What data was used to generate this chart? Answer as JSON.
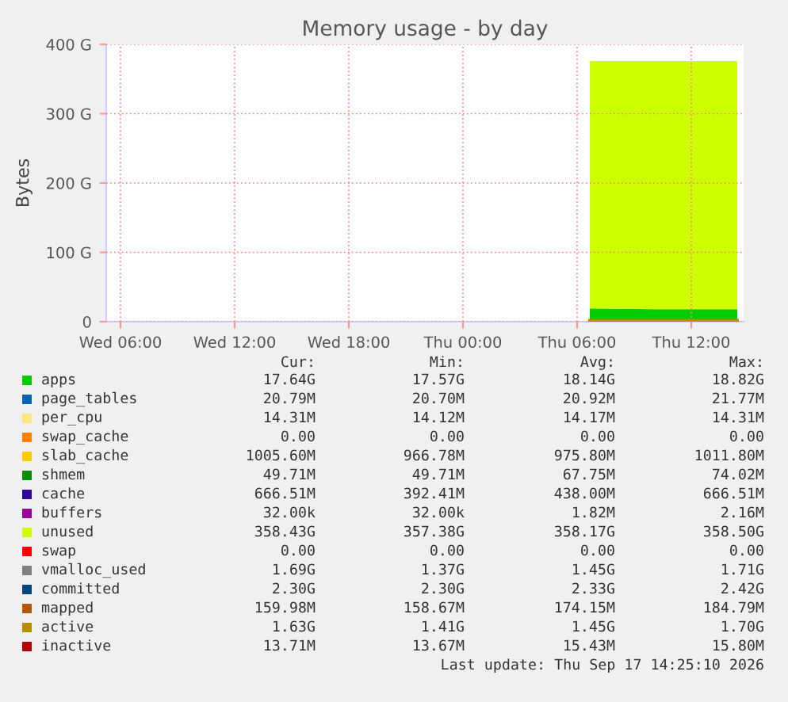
{
  "chart_data": {
    "type": "area",
    "title": "Memory usage - by day",
    "ylabel": "Bytes",
    "stacked": true,
    "grid": true,
    "legend": "bottom",
    "x": [
      "2026-09-17T06:40",
      "2026-09-17T10:00",
      "2026-09-17T14:25"
    ],
    "xlim": [
      "2026-09-16T05:15",
      "2026-09-17T14:45"
    ],
    "xticks": [
      {
        "value": "2026-09-16T06:00",
        "label": "Wed 06:00"
      },
      {
        "value": "2026-09-16T12:00",
        "label": "Wed 12:00"
      },
      {
        "value": "2026-09-16T18:00",
        "label": "Wed 18:00"
      },
      {
        "value": "2026-09-17T00:00",
        "label": "Thu 00:00"
      },
      {
        "value": "2026-09-17T06:00",
        "label": "Thu 06:00"
      },
      {
        "value": "2026-09-17T12:00",
        "label": "Thu 12:00"
      }
    ],
    "ylim": [
      0,
      400
    ],
    "yticks": [
      0,
      {
        "value": 100,
        "label": "100 G"
      },
      {
        "value": 200,
        "label": "200 G"
      },
      {
        "value": 300,
        "label": "300 G"
      },
      {
        "value": 400,
        "label": "400 G"
      }
    ],
    "series": [
      {
        "name": "apps",
        "color": "#00cc00",
        "values": [
          19,
          18,
          18
        ]
      },
      {
        "name": "page_tables",
        "color": "#0066b3",
        "values": [
          null,
          null,
          null
        ]
      },
      {
        "name": "per_cpu",
        "color": "#ffe680",
        "values": [
          null,
          null,
          null
        ]
      },
      {
        "name": "swap_cache",
        "color": "#ff8000",
        "values": [
          null,
          null,
          null
        ]
      },
      {
        "name": "slab_cache",
        "color": "#ffcc00",
        "values": [
          null,
          null,
          null
        ]
      },
      {
        "name": "shmem",
        "color": "#008f00",
        "values": [
          null,
          null,
          null
        ]
      },
      {
        "name": "cache",
        "color": "#330099",
        "values": [
          null,
          null,
          null
        ]
      },
      {
        "name": "buffers",
        "color": "#990099",
        "values": [
          null,
          null,
          null
        ]
      },
      {
        "name": "unused",
        "color": "#ccff00",
        "values": [
          357,
          358,
          358
        ]
      },
      {
        "name": "swap",
        "color": "#ff0000",
        "values": [
          null,
          null,
          null
        ]
      },
      {
        "name": "vmalloc_used",
        "type": "line",
        "color": "#808080",
        "values": [
          null,
          null,
          null
        ]
      },
      {
        "name": "committed",
        "type": "line",
        "color": "#00487d",
        "values": [
          null,
          null,
          null
        ]
      },
      {
        "name": "mapped",
        "type": "line",
        "color": "#b35a00",
        "values": [
          null,
          null,
          null
        ]
      },
      {
        "name": "active",
        "type": "line",
        "color": "#b38f00",
        "values": [
          1.5,
          1.5,
          1.5
        ]
      },
      {
        "name": "inactive",
        "type": "line",
        "color": "#b30000",
        "values": [
          null,
          null,
          null
        ]
      }
    ],
    "annotations": [
      "Cur:",
      "Min:",
      "Avg:",
      "Max:",
      "17.64G",
      "17.57G",
      "18.14G",
      "18.82G",
      "20.79M",
      "20.70M",
      "20.92M",
      "21.77M",
      "14.31M",
      "14.12M",
      "14.17M",
      "14.31M",
      "0.00",
      "0.00",
      "0.00",
      "0.00",
      "1005.60M",
      "966.78M",
      "975.80M",
      "1011.80M",
      "49.71M",
      "49.71M",
      "67.75M",
      "74.02M",
      "666.51M",
      "392.41M",
      "438.00M",
      "666.51M",
      "32.00k",
      "32.00k",
      "1.82M",
      "2.16M",
      "358.43G",
      "357.38G",
      "358.17G",
      "358.50G",
      "0.00",
      "0.00",
      "0.00",
      "0.00",
      "1.69G",
      "1.37G",
      "1.45G",
      "1.71G",
      "2.30G",
      "2.30G",
      "2.33G",
      "2.42G",
      "159.98M",
      "158.67M",
      "174.15M",
      "184.79M",
      "1.63G",
      "1.41G",
      "1.45G",
      "1.70G",
      "13.71M",
      "13.67M",
      "15.43M",
      "15.80M",
      "Last update: Thu Sep 17 14:25:10 2026"
    ]
  }
}
